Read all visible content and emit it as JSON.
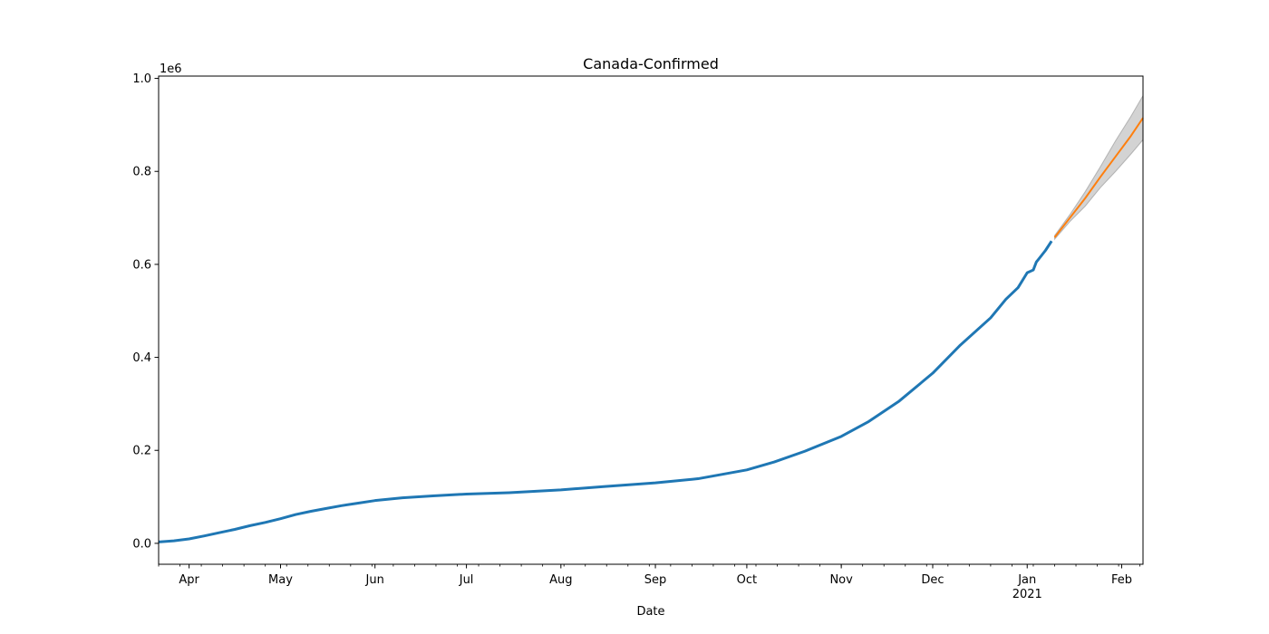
{
  "chart_data": {
    "type": "line",
    "title": "Canada-Confirmed",
    "xlabel": "Date",
    "ylabel": "",
    "y_offset_label": "1e6",
    "x_range": [
      "2020-03-22",
      "2021-02-08"
    ],
    "ylim": [
      -45000,
      1005000
    ],
    "x_ticks": [
      {
        "date": "2020-04-01",
        "label": "Apr"
      },
      {
        "date": "2020-05-01",
        "label": "May"
      },
      {
        "date": "2020-06-01",
        "label": "Jun"
      },
      {
        "date": "2020-07-01",
        "label": "Jul"
      },
      {
        "date": "2020-08-01",
        "label": "Aug"
      },
      {
        "date": "2020-09-01",
        "label": "Sep"
      },
      {
        "date": "2020-10-01",
        "label": "Oct"
      },
      {
        "date": "2020-11-01",
        "label": "Nov"
      },
      {
        "date": "2020-12-01",
        "label": "Dec"
      },
      {
        "date": "2021-01-01",
        "label": "Jan",
        "sublabel": "2021"
      },
      {
        "date": "2021-02-01",
        "label": "Feb"
      }
    ],
    "y_ticks": [
      {
        "value": 0,
        "label": "0.0"
      },
      {
        "value": 200000,
        "label": "0.2"
      },
      {
        "value": 400000,
        "label": "0.4"
      },
      {
        "value": 600000,
        "label": "0.6"
      },
      {
        "value": 800000,
        "label": "0.8"
      },
      {
        "value": 1000000,
        "label": "1.0"
      }
    ],
    "grid": false,
    "series": [
      {
        "color": "#1f77b4",
        "points": [
          [
            "2020-03-22",
            3000
          ],
          [
            "2020-03-27",
            5500
          ],
          [
            "2020-04-01",
            9500
          ],
          [
            "2020-04-06",
            16000
          ],
          [
            "2020-04-11",
            23000
          ],
          [
            "2020-04-16",
            30000
          ],
          [
            "2020-04-21",
            38000
          ],
          [
            "2020-04-26",
            45000
          ],
          [
            "2020-05-01",
            53000
          ],
          [
            "2020-05-06",
            62000
          ],
          [
            "2020-05-11",
            69000
          ],
          [
            "2020-05-16",
            75000
          ],
          [
            "2020-05-21",
            81000
          ],
          [
            "2020-05-26",
            86000
          ],
          [
            "2020-06-01",
            92000
          ],
          [
            "2020-06-10",
            98000
          ],
          [
            "2020-06-20",
            102000
          ],
          [
            "2020-07-01",
            106000
          ],
          [
            "2020-07-15",
            109000
          ],
          [
            "2020-08-01",
            115000
          ],
          [
            "2020-08-15",
            122000
          ],
          [
            "2020-09-01",
            130000
          ],
          [
            "2020-09-15",
            139000
          ],
          [
            "2020-10-01",
            158000
          ],
          [
            "2020-10-10",
            175000
          ],
          [
            "2020-10-20",
            198000
          ],
          [
            "2020-11-01",
            230000
          ],
          [
            "2020-11-10",
            262000
          ],
          [
            "2020-11-20",
            306000
          ],
          [
            "2020-12-01",
            366000
          ],
          [
            "2020-12-10",
            426000
          ],
          [
            "2020-12-20",
            485000
          ],
          [
            "2020-12-25",
            525000
          ],
          [
            "2020-12-29",
            550000
          ],
          [
            "2021-01-01",
            582000
          ],
          [
            "2021-01-03",
            588000
          ],
          [
            "2021-01-04",
            605000
          ],
          [
            "2021-01-07",
            630000
          ],
          [
            "2021-01-09",
            650000
          ]
        ]
      },
      {
        "color": "#ff7f0e",
        "points": [
          [
            "2021-01-10",
            658000
          ],
          [
            "2021-01-15",
            700000
          ],
          [
            "2021-01-20",
            742000
          ],
          [
            "2021-01-25",
            788000
          ],
          [
            "2021-01-30",
            832000
          ],
          [
            "2021-02-04",
            876000
          ],
          [
            "2021-02-08",
            915000
          ]
        ]
      }
    ],
    "confidence_band": {
      "color": "#808080",
      "upper": [
        [
          "2021-01-10",
          662000
        ],
        [
          "2021-01-15",
          707000
        ],
        [
          "2021-01-20",
          756000
        ],
        [
          "2021-01-25",
          810000
        ],
        [
          "2021-01-30",
          866000
        ],
        [
          "2021-02-04",
          918000
        ],
        [
          "2021-02-08",
          963000
        ]
      ],
      "lower": [
        [
          "2021-01-10",
          654000
        ],
        [
          "2021-01-15",
          692000
        ],
        [
          "2021-01-20",
          725000
        ],
        [
          "2021-01-25",
          765000
        ],
        [
          "2021-01-30",
          800000
        ],
        [
          "2021-02-04",
          837000
        ],
        [
          "2021-02-08",
          868000
        ]
      ]
    }
  }
}
